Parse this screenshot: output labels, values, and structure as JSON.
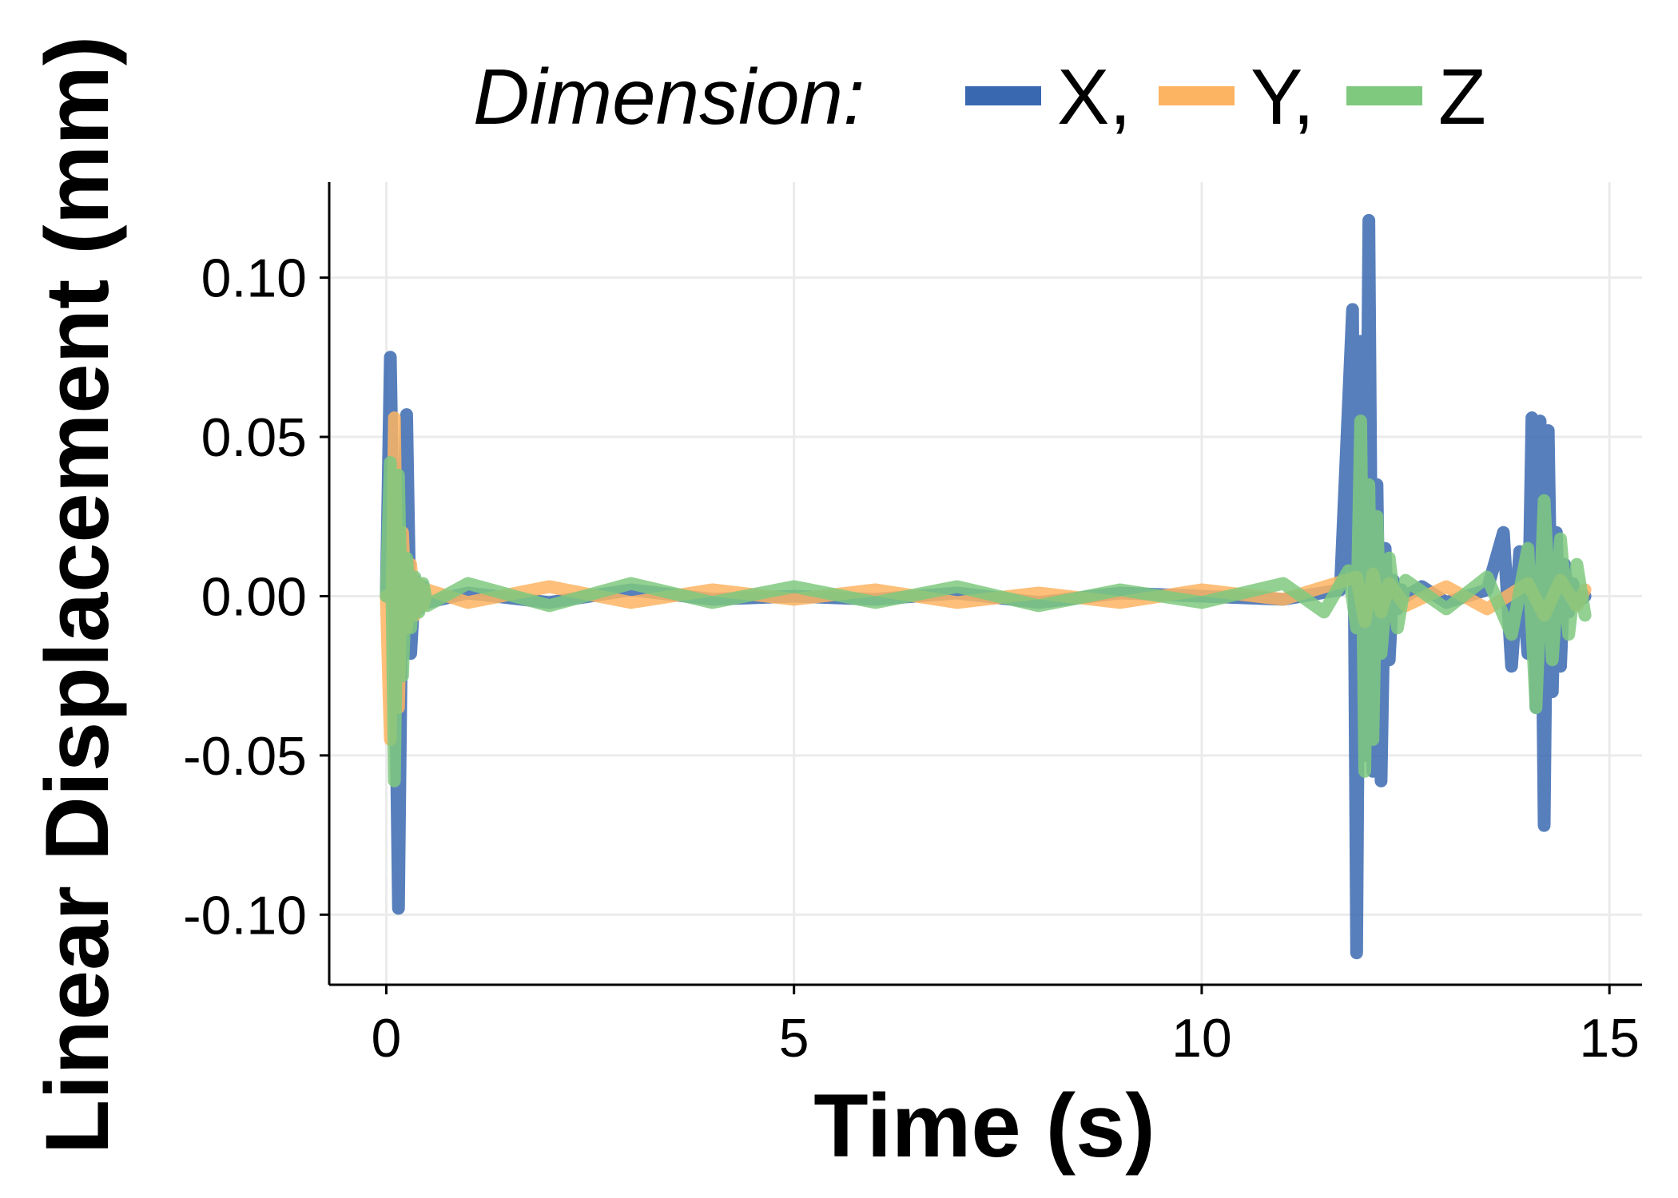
{
  "chart_data": {
    "type": "line",
    "xlabel": "Time (s)",
    "ylabel": "Linear Displacement (mm)",
    "xlim": [
      -0.7,
      15.4
    ],
    "ylim": [
      -0.122,
      0.13
    ],
    "x_ticks": [
      0,
      5,
      10,
      15
    ],
    "x_tick_labels": [
      "0",
      "5",
      "10",
      "15"
    ],
    "y_ticks": [
      -0.1,
      -0.05,
      0.0,
      0.05,
      0.1
    ],
    "y_tick_labels": [
      "-0.10",
      "-0.05",
      "0.00",
      "0.05",
      "0.10"
    ],
    "grid": true,
    "legend": {
      "title": "Dimension:",
      "position": "top",
      "entries": [
        "X,",
        "Y,",
        "Z"
      ]
    },
    "series": [
      {
        "name": "X",
        "color": "#3a68b0",
        "x": [
          0.0,
          0.05,
          0.1,
          0.15,
          0.2,
          0.25,
          0.3,
          0.35,
          0.4,
          0.45,
          0.5,
          1.0,
          2.0,
          3.0,
          4.0,
          5.0,
          6.0,
          7.0,
          8.0,
          9.0,
          10.0,
          11.0,
          11.7,
          11.85,
          11.9,
          11.95,
          12.0,
          12.05,
          12.1,
          12.15,
          12.2,
          12.25,
          12.3,
          12.35,
          12.4,
          12.45,
          12.5,
          12.7,
          13.0,
          13.5,
          13.7,
          13.8,
          13.9,
          14.0,
          14.05,
          14.1,
          14.15,
          14.2,
          14.25,
          14.3,
          14.35,
          14.4,
          14.45,
          14.5,
          14.55,
          14.6,
          14.7
        ],
        "y": [
          0.0,
          0.075,
          0.0,
          -0.098,
          0.02,
          0.057,
          -0.018,
          0.005,
          -0.004,
          0.003,
          -0.002,
          0.001,
          -0.002,
          0.002,
          -0.001,
          0.0,
          -0.001,
          0.001,
          -0.002,
          0.001,
          0.0,
          -0.001,
          0.002,
          0.09,
          -0.112,
          0.08,
          -0.05,
          0.118,
          -0.055,
          0.035,
          -0.058,
          0.015,
          -0.02,
          0.005,
          -0.004,
          0.002,
          0.0,
          0.003,
          -0.002,
          0.002,
          0.02,
          -0.022,
          0.014,
          -0.018,
          0.056,
          -0.035,
          0.055,
          -0.072,
          0.052,
          -0.03,
          0.02,
          -0.022,
          0.01,
          -0.005,
          0.004,
          -0.002,
          0.0
        ]
      },
      {
        "name": "Y",
        "color": "#fdb462",
        "x": [
          0.0,
          0.05,
          0.1,
          0.15,
          0.2,
          0.25,
          0.3,
          0.35,
          0.4,
          0.45,
          0.5,
          1.0,
          2.0,
          3.0,
          4.0,
          5.0,
          6.0,
          7.0,
          8.0,
          9.0,
          10.0,
          11.0,
          11.9,
          12.0,
          12.1,
          12.2,
          12.3,
          12.5,
          13.0,
          13.5,
          14.0,
          14.2,
          14.4,
          14.6,
          14.7
        ],
        "y": [
          0.0,
          -0.045,
          0.056,
          -0.035,
          0.02,
          -0.01,
          0.01,
          -0.006,
          0.004,
          -0.003,
          0.002,
          -0.002,
          0.003,
          -0.002,
          0.002,
          -0.001,
          0.002,
          -0.002,
          0.001,
          -0.002,
          0.002,
          -0.001,
          0.006,
          -0.008,
          0.007,
          -0.005,
          0.004,
          -0.003,
          0.003,
          -0.004,
          0.004,
          -0.006,
          0.005,
          -0.003,
          0.002
        ]
      },
      {
        "name": "Z",
        "color": "#7fc97f",
        "x": [
          0.0,
          0.05,
          0.1,
          0.15,
          0.2,
          0.25,
          0.3,
          0.35,
          0.4,
          0.45,
          0.5,
          1.0,
          2.0,
          3.0,
          4.0,
          5.0,
          6.0,
          7.0,
          8.0,
          9.0,
          10.0,
          11.0,
          11.5,
          11.8,
          11.9,
          11.95,
          12.0,
          12.05,
          12.1,
          12.15,
          12.2,
          12.3,
          12.4,
          12.5,
          13.0,
          13.5,
          13.8,
          14.0,
          14.1,
          14.2,
          14.3,
          14.4,
          14.5,
          14.6,
          14.7
        ],
        "y": [
          0.0,
          0.042,
          -0.058,
          0.038,
          -0.025,
          0.012,
          -0.01,
          0.006,
          -0.005,
          0.004,
          -0.003,
          0.004,
          -0.003,
          0.004,
          -0.002,
          0.003,
          -0.002,
          0.003,
          -0.003,
          0.002,
          -0.002,
          0.004,
          -0.005,
          0.008,
          -0.01,
          0.055,
          -0.055,
          0.035,
          -0.045,
          0.025,
          -0.018,
          0.012,
          -0.01,
          0.005,
          -0.004,
          0.006,
          -0.012,
          0.015,
          -0.035,
          0.03,
          -0.02,
          0.018,
          -0.012,
          0.01,
          -0.006
        ]
      }
    ]
  }
}
